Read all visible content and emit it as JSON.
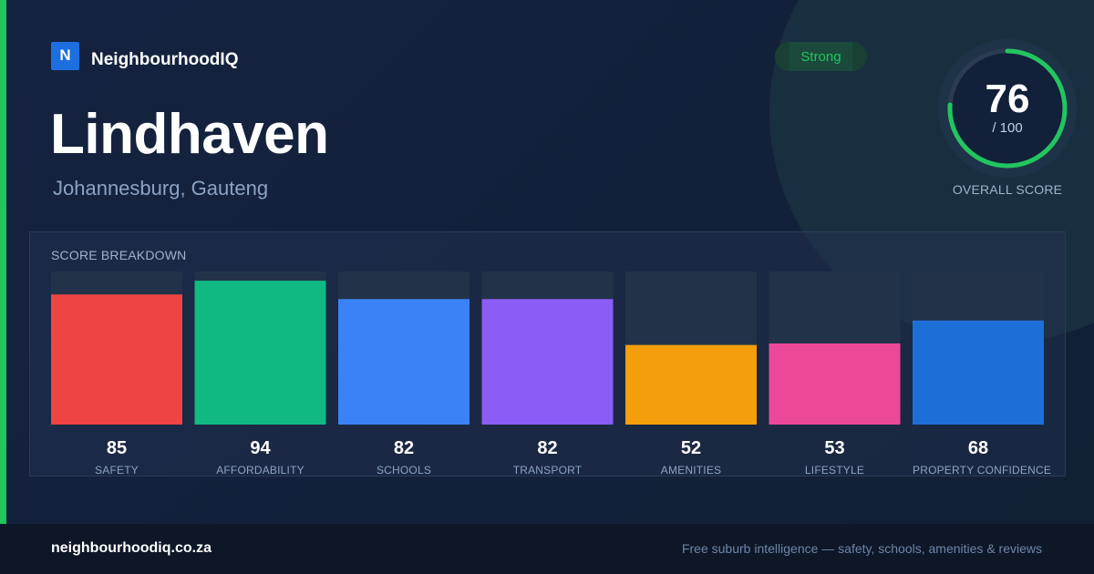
{
  "brand": {
    "logo_letter": "N",
    "name": "NeighbourhoodIQ"
  },
  "suburb": {
    "name": "Lindhaven",
    "location": "Johannesburg, Gauteng"
  },
  "badge": {
    "label": "Strong",
    "color": "#22c55e"
  },
  "overall": {
    "score": "76",
    "max_label": "/ 100",
    "label": "OVERALL SCORE",
    "fraction": 0.76
  },
  "breakdown": {
    "title": "SCORE BREAKDOWN"
  },
  "chart_data": {
    "type": "bar",
    "categories": [
      "SAFETY",
      "AFFORDABILITY",
      "SCHOOLS",
      "TRANSPORT",
      "AMENITIES",
      "LIFESTYLE",
      "PROPERTY CONFIDENCE"
    ],
    "values": [
      85,
      94,
      82,
      82,
      52,
      53,
      68
    ],
    "colors": [
      "#ef4444",
      "#10b981",
      "#3b82f6",
      "#8b5cf6",
      "#f59e0b",
      "#ec4899",
      "#1d6fd8"
    ],
    "ylim": [
      0,
      100
    ]
  },
  "footer": {
    "url": "neighbourhoodiq.co.za",
    "tagline": "Free suburb intelligence — safety, schools, amenities & reviews"
  }
}
